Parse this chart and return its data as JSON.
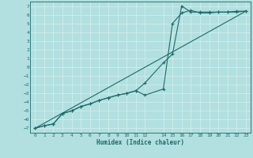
{
  "xlabel": "Humidex (Indice chaleur)",
  "bg_color": "#b2dfdf",
  "grid_color": "#d0eeee",
  "line_color": "#1a6b6b",
  "xlim": [
    -0.5,
    23.5
  ],
  "ylim": [
    -7.5,
    7.5
  ],
  "xticks": [
    0,
    1,
    2,
    3,
    4,
    5,
    6,
    7,
    8,
    9,
    10,
    11,
    12,
    14,
    15,
    16,
    17,
    18,
    19,
    20,
    21,
    22,
    23
  ],
  "yticks": [
    7,
    6,
    5,
    4,
    3,
    2,
    1,
    0,
    -1,
    -2,
    -3,
    -4,
    -5,
    -6,
    -7
  ],
  "series1_x": [
    0,
    1,
    2,
    3,
    4,
    5,
    6,
    7,
    8,
    9,
    10,
    11,
    12,
    14,
    15,
    16,
    17,
    18,
    19,
    20,
    21,
    22,
    23
  ],
  "series1_y": [
    -7.0,
    -6.7,
    -6.5,
    -5.3,
    -5.0,
    -4.5,
    -4.2,
    -3.8,
    -3.5,
    -3.2,
    -3.0,
    -2.7,
    -3.2,
    -2.5,
    5.0,
    6.2,
    6.5,
    6.2,
    6.2,
    6.3,
    6.3,
    6.3,
    6.4
  ],
  "series2_x": [
    0,
    1,
    2,
    3,
    4,
    5,
    6,
    7,
    8,
    9,
    10,
    11,
    12,
    14,
    15,
    16,
    17,
    18,
    19,
    20,
    21,
    22,
    23
  ],
  "series2_y": [
    -7.0,
    -6.7,
    -6.5,
    -5.3,
    -5.0,
    -4.5,
    -4.2,
    -3.8,
    -3.5,
    -3.2,
    -3.0,
    -2.7,
    -1.8,
    0.5,
    1.5,
    7.0,
    6.3,
    6.3,
    6.3,
    6.3,
    6.3,
    6.4,
    6.4
  ],
  "series3_x": [
    0,
    23
  ],
  "series3_y": [
    -7.0,
    6.4
  ]
}
